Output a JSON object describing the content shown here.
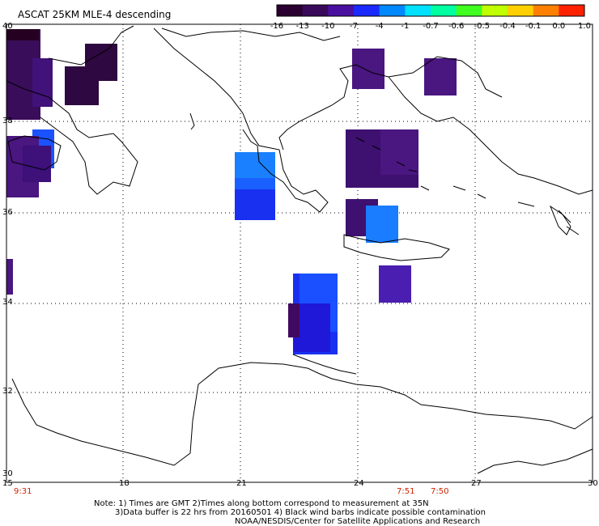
{
  "title": "ASCAT 25KM MLE-4 descending",
  "colorbar": {
    "ticks": [
      "-16",
      "-13",
      "-10",
      "-7",
      "-4",
      "-1",
      "-0.7",
      "-0.6",
      "-0.5",
      "-0.4",
      "-0.1",
      "0.0",
      "1.0"
    ],
    "colors": [
      "#2a0030",
      "#3a0a5a",
      "#4a10a0",
      "#1a2aff",
      "#0088ff",
      "#00e0ff",
      "#00ffa0",
      "#40ff20",
      "#c0ff00",
      "#ffd000",
      "#ff8000",
      "#ff2000"
    ]
  },
  "axes": {
    "lon_labels": [
      "15",
      "18",
      "21",
      "24",
      "27",
      "30"
    ],
    "lat_labels": [
      "40",
      "38",
      "36",
      "34",
      "32",
      "30"
    ]
  },
  "times": [
    "9:31",
    "7:51",
    "7:50"
  ],
  "notes": {
    "line1": "Note: 1) Times are GMT 2)Times along bottom correspond to measurement at 35N",
    "line2": "3)Data buffer is 22 hrs from 20160501 4) Black wind barbs indicate possible contamination",
    "line3": "NOAA/NESDIS/Center for Satellite Applications and Research"
  },
  "palette": {
    "dark": "#2e0840",
    "purple": "#4a1680",
    "blue": "#1a2cf0",
    "lightblue": "#1a78ff"
  }
}
